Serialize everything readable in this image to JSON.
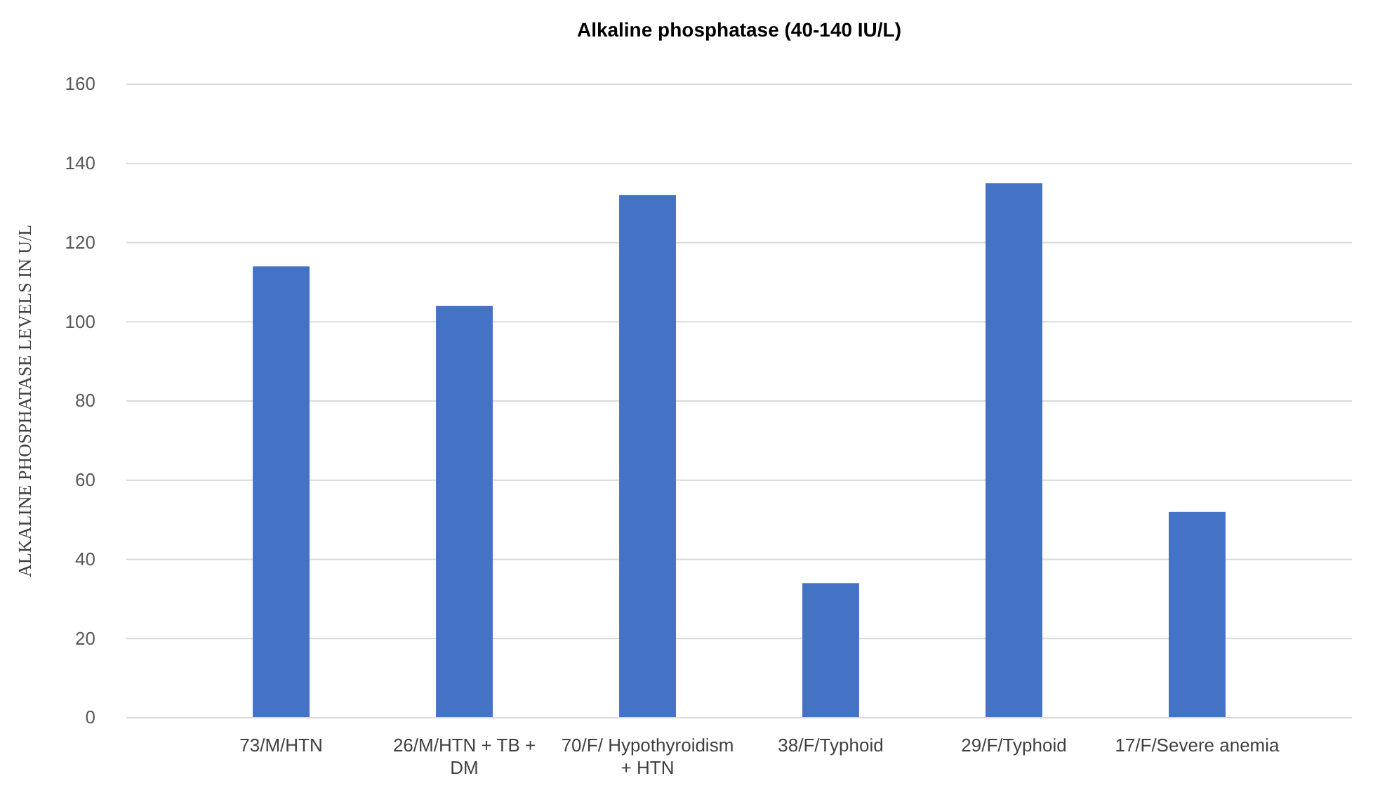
{
  "chart_data": {
    "type": "bar",
    "title": "Alkaline phosphatase  (40-140 IU/L)",
    "ylabel": "ALKALINE  PHOSPHATASE  LEVELS  IN  U/L",
    "categories": [
      "73/M/HTN",
      "26/M/HTN + TB + DM",
      "70/F/ Hypothyroidism + HTN",
      "38/F/Typhoid",
      "29/F/Typhoid",
      "17/F/Severe anemia"
    ],
    "values": [
      114,
      104,
      132,
      34,
      135,
      52
    ],
    "color": "#4472c4",
    "ylim": [
      0,
      160
    ],
    "yticks": [
      0,
      20,
      40,
      60,
      80,
      100,
      120,
      140,
      160
    ],
    "grid": "y"
  }
}
